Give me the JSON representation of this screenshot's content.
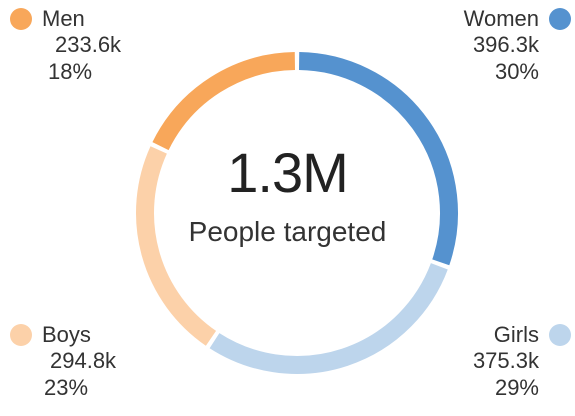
{
  "chart_data": {
    "type": "pie",
    "variant": "donut",
    "total_display": "1.3M",
    "total_label": "People targeted",
    "slices": [
      {
        "name": "Women",
        "value_label": "396.3k",
        "value": 396300,
        "percent": 30,
        "percent_label": "30%",
        "color": "#5592cf"
      },
      {
        "name": "Girls",
        "value_label": "375.3k",
        "value": 375300,
        "percent": 29,
        "percent_label": "29%",
        "color": "#bdd5ec"
      },
      {
        "name": "Boys",
        "value_label": "294.8k",
        "value": 294800,
        "percent": 23,
        "percent_label": "23%",
        "color": "#fcd1a9"
      },
      {
        "name": "Men",
        "value_label": "233.6k",
        "value": 233600,
        "percent": 18,
        "percent_label": "18%",
        "color": "#f8a75a"
      }
    ]
  }
}
